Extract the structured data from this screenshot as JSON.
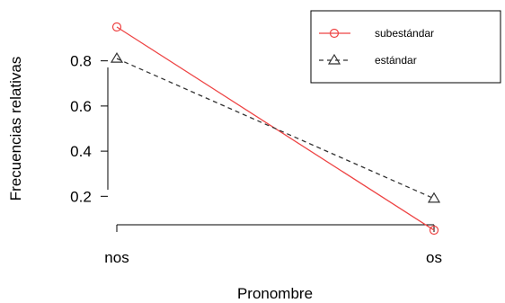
{
  "chart_data": {
    "type": "line",
    "title": "",
    "xlabel": "Pronombre",
    "ylabel": "Frecuencias relativas",
    "categories": [
      "nos",
      "os"
    ],
    "ylim": [
      0.05,
      0.95
    ],
    "yticks": [
      0.2,
      0.4,
      0.6,
      0.8
    ],
    "ytick_labels": [
      "0.2",
      "0.4",
      "0.6",
      "0.8"
    ],
    "grid": false,
    "legend_position": "top-right",
    "series": [
      {
        "name": "subestándar",
        "values": [
          0.95,
          0.05
        ],
        "color": "#ee4444",
        "line": "solid",
        "marker": "circle"
      },
      {
        "name": "estándar",
        "values": [
          0.81,
          0.19
        ],
        "color": "#333333",
        "line": "dashed",
        "marker": "triangle"
      }
    ]
  }
}
